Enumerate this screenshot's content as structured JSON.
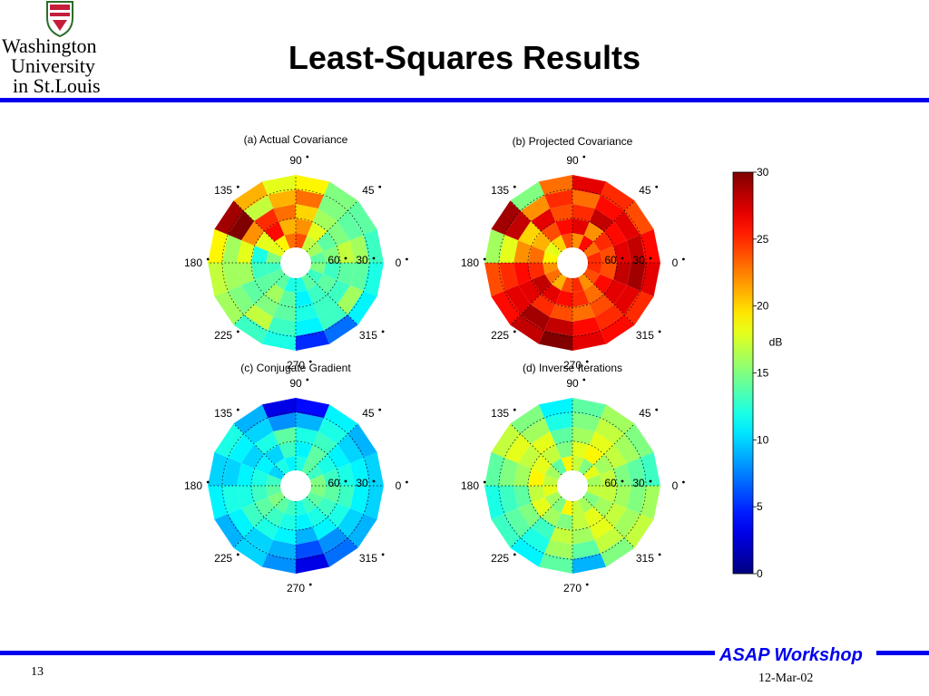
{
  "logo": {
    "line1": "Washington",
    "line2": "University",
    "line3": "in St.Louis"
  },
  "slide": {
    "title": "Least-Squares Results",
    "footer_brand": "ASAP Workshop",
    "number": "13",
    "date": "12-Mar-02"
  },
  "colors": {
    "accent_blue": "#0000ee"
  },
  "chart_data": [
    {
      "type": "heatmap",
      "subtype": "polar",
      "title": "(a) Actual Covariance",
      "angle_labels": [
        "90",
        "45",
        "0",
        "315",
        "270",
        "225",
        "180",
        "135"
      ],
      "radius_labels": [
        "30",
        "60"
      ],
      "rings": 5,
      "sectors": 16,
      "values": [
        [
          14,
          16,
          17,
          24,
          23,
          19,
          18,
          15,
          13,
          14,
          14,
          12,
          12,
          14,
          13,
          15
        ],
        [
          15,
          14,
          18,
          22,
          21,
          26,
          18,
          12,
          13,
          14,
          16,
          14,
          11,
          13,
          14,
          13
        ],
        [
          17,
          15,
          16,
          20,
          23,
          25,
          22,
          18,
          16,
          14,
          15,
          14,
          12,
          13,
          13,
          14
        ],
        [
          16,
          14,
          15,
          23,
          21,
          17,
          30,
          16,
          16,
          15,
          17,
          13,
          11,
          13,
          16,
          14
        ],
        [
          13,
          14,
          15,
          19,
          18,
          21,
          29,
          19,
          17,
          16,
          13,
          12,
          5,
          7,
          11,
          12
        ]
      ]
    },
    {
      "type": "heatmap",
      "subtype": "polar",
      "title": "(b) Projected Covariance",
      "angle_labels": [
        "90",
        "45",
        "0",
        "315",
        "270",
        "225",
        "180",
        "135"
      ],
      "radius_labels": [
        "30",
        "60"
      ],
      "rings": 5,
      "sectors": 16,
      "values": [
        [
          25,
          23,
          26,
          22,
          24,
          20,
          18,
          19,
          22,
          23,
          21,
          24,
          25,
          22,
          24,
          25
        ],
        [
          24,
          25,
          22,
          27,
          26,
          24,
          21,
          23,
          25,
          28,
          27,
          26,
          25,
          23,
          26,
          24
        ],
        [
          27,
          26,
          28,
          25,
          24,
          27,
          20,
          22,
          26,
          27,
          25,
          24,
          23,
          24,
          27,
          28
        ],
        [
          28,
          27,
          26,
          23,
          25,
          22,
          28,
          18,
          25,
          27,
          29,
          28,
          26,
          25,
          27,
          29
        ],
        [
          26,
          24,
          25,
          27,
          23,
          15,
          29,
          16,
          24,
          26,
          28,
          30,
          27,
          26,
          25,
          27
        ]
      ]
    },
    {
      "type": "heatmap",
      "subtype": "polar",
      "title": "(c) Conjugate Gradient",
      "angle_labels": [
        "90",
        "45",
        "0",
        "315",
        "270",
        "225",
        "180",
        "135"
      ],
      "radius_labels": [
        "30",
        "60"
      ],
      "rings": 5,
      "sectors": 16,
      "values": [
        [
          15,
          13,
          14,
          12,
          11,
          12,
          10,
          13,
          14,
          15,
          14,
          13,
          12,
          13,
          14,
          15
        ],
        [
          13,
          12,
          14,
          11,
          13,
          10,
          11,
          12,
          13,
          14,
          13,
          12,
          11,
          12,
          13,
          14
        ],
        [
          12,
          11,
          13,
          12,
          14,
          12,
          10,
          11,
          12,
          13,
          12,
          11,
          9,
          11,
          12,
          13
        ],
        [
          11,
          10,
          12,
          9,
          8,
          10,
          11,
          10,
          12,
          11,
          10,
          9,
          6,
          8,
          10,
          11
        ],
        [
          10,
          9,
          11,
          4,
          3,
          9,
          12,
          10,
          11,
          9,
          10,
          8,
          3,
          7,
          9,
          10
        ]
      ]
    },
    {
      "type": "heatmap",
      "subtype": "polar",
      "title": "(d) Inverse Iterations",
      "angle_labels": [
        "90",
        "45",
        "0",
        "315",
        "270",
        "225",
        "180",
        "135"
      ],
      "radius_labels": [
        "30",
        "60"
      ],
      "rings": 5,
      "sectors": 16,
      "values": [
        [
          16,
          18,
          15,
          17,
          19,
          14,
          16,
          17,
          18,
          16,
          15,
          19,
          17,
          16,
          15,
          17
        ],
        [
          17,
          16,
          19,
          18,
          15,
          17,
          18,
          19,
          17,
          18,
          16,
          15,
          17,
          18,
          16,
          17
        ],
        [
          15,
          17,
          18,
          16,
          14,
          18,
          17,
          16,
          14,
          15,
          13,
          17,
          16,
          18,
          17,
          16
        ],
        [
          14,
          16,
          17,
          15,
          12,
          16,
          18,
          15,
          13,
          14,
          12,
          16,
          14,
          17,
          16,
          15
        ],
        [
          13,
          15,
          16,
          14,
          11,
          15,
          17,
          14,
          12,
          13,
          11,
          14,
          9,
          15,
          17,
          16
        ]
      ]
    }
  ],
  "colorbar": {
    "label": "dB",
    "min": 0,
    "max": 30,
    "ticks": [
      "0",
      "5",
      "10",
      "15",
      "20",
      "25",
      "30"
    ]
  }
}
